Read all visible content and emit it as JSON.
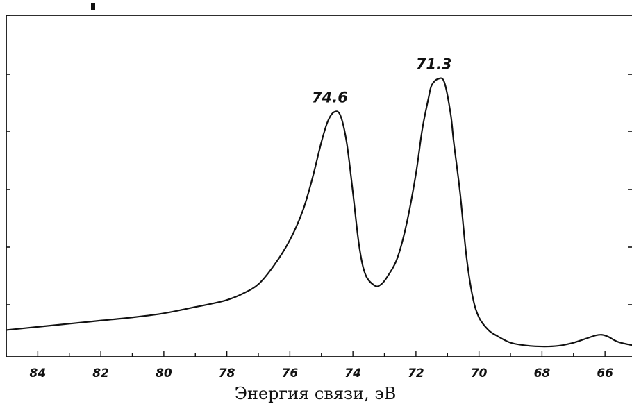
{
  "chart_data": {
    "type": "line",
    "title": "",
    "xlabel": "Энергия связи, эВ",
    "ylabel": "",
    "xlim": [
      85,
      65.1
    ],
    "ylim": [
      0,
      100
    ],
    "x_reversed": true,
    "grid": false,
    "legend": "none",
    "y_tick_labels_shown": false,
    "x_ticks": [
      84,
      82,
      80,
      78,
      76,
      74,
      72,
      70,
      68,
      66
    ],
    "x_tick_labels": [
      "84",
      "82",
      "80",
      "78",
      "76",
      "74",
      "72",
      "70",
      "68",
      "66"
    ],
    "annotations": [
      {
        "text": "74.6",
        "x": 74.6,
        "y": 75.5
      },
      {
        "text": "71.3",
        "x": 71.3,
        "y": 86.0
      }
    ],
    "series": [
      {
        "color": "#111111",
        "x": [
          85.0,
          84.0,
          83.0,
          82.0,
          81.0,
          80.0,
          79.0,
          78.5,
          78.0,
          77.5,
          77.0,
          76.5,
          76.0,
          75.6,
          75.3,
          75.0,
          74.8,
          74.6,
          74.4,
          74.2,
          74.0,
          73.8,
          73.6,
          73.3,
          73.1,
          72.9,
          72.6,
          72.3,
          72.0,
          71.8,
          71.6,
          71.5,
          71.3,
          71.1,
          70.9,
          70.8,
          70.6,
          70.4,
          70.2,
          70.0,
          69.7,
          69.4,
          69.0,
          68.5,
          68.0,
          67.5,
          67.0,
          66.6,
          66.3,
          66.1,
          65.9,
          65.6,
          65.1
        ],
        "y": [
          6.5,
          7.5,
          8.5,
          9.5,
          10.5,
          11.8,
          13.8,
          14.8,
          16.0,
          18.0,
          21.0,
          27.0,
          35.0,
          44.0,
          54.0,
          66.0,
          72.5,
          75.5,
          74.5,
          66.0,
          50.0,
          33.0,
          24.0,
          20.5,
          21.0,
          23.5,
          29.0,
          40.0,
          56.0,
          70.0,
          80.0,
          84.0,
          86.0,
          85.0,
          75.0,
          66.0,
          50.0,
          30.0,
          17.0,
          10.5,
          6.5,
          4.5,
          2.5,
          1.6,
          1.3,
          1.5,
          2.5,
          3.8,
          4.8,
          5.0,
          4.4,
          2.8,
          1.6
        ]
      }
    ]
  }
}
